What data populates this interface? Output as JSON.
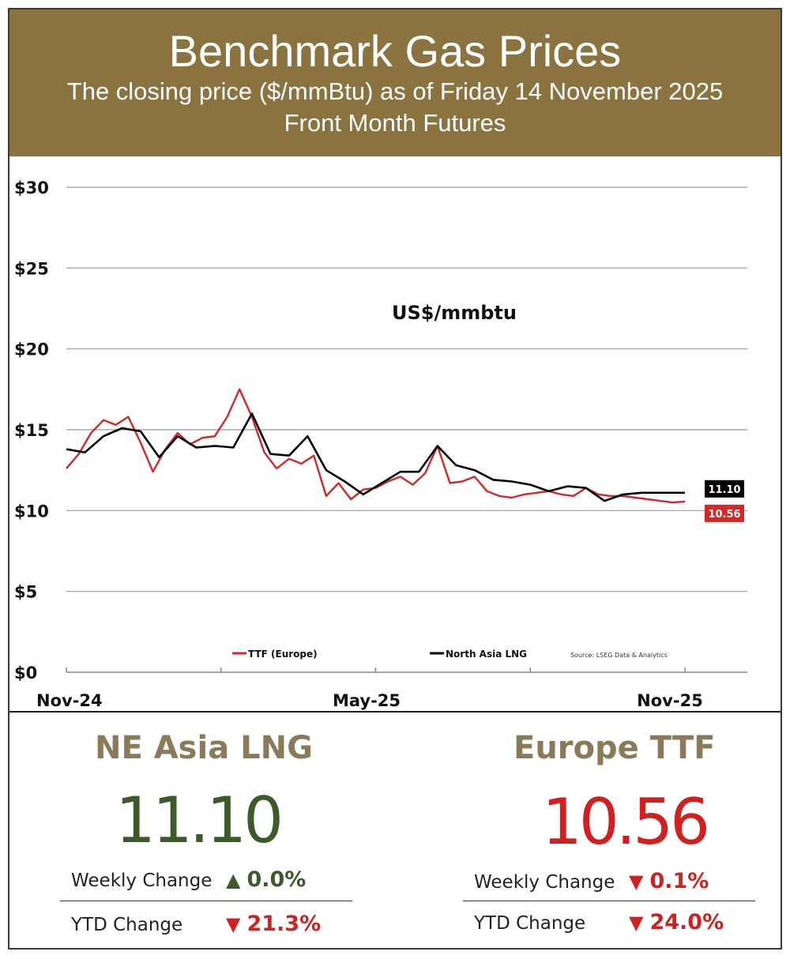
{
  "header": {
    "title": "Benchmark Gas Prices",
    "subtitle": "The closing price ($/mmBtu) as of Friday 14 November 2025",
    "subtitle2": "Front Month  Futures"
  },
  "colors": {
    "header_bg": "#8b7340",
    "ttf": "#d62728",
    "lng": "#000000",
    "up": "#3c5a2a",
    "down": "#d02020",
    "panel_title": "#8b7a5a"
  },
  "chart_data": {
    "type": "line",
    "annotation": "US$/mmbtu",
    "ylim": [
      0,
      30
    ],
    "y_ticks": [
      "$30",
      "$25",
      "$20",
      "$15",
      "$10",
      "$5",
      "$0"
    ],
    "y_tick_values": [
      30,
      25,
      20,
      15,
      10,
      5,
      0
    ],
    "x_tick_labels": [
      "Nov-24",
      "May-25",
      "Nov-25"
    ],
    "x_tick_label_positions": [
      0,
      0.5,
      1.0
    ],
    "source": "Source: LSEG Data & Analytics",
    "grid": true,
    "legend_placement": "bottom",
    "series": [
      {
        "name": "TTF (Europe)",
        "color": "#d62728",
        "end_label": "10.56",
        "x": [
          0,
          0.02,
          0.04,
          0.06,
          0.08,
          0.1,
          0.12,
          0.14,
          0.16,
          0.18,
          0.2,
          0.22,
          0.24,
          0.26,
          0.28,
          0.3,
          0.32,
          0.34,
          0.36,
          0.38,
          0.4,
          0.42,
          0.44,
          0.46,
          0.48,
          0.5,
          0.52,
          0.54,
          0.56,
          0.58,
          0.6,
          0.62,
          0.64,
          0.66,
          0.68,
          0.7,
          0.72,
          0.74,
          0.76,
          0.78,
          0.8,
          0.82,
          0.84,
          0.86,
          0.88,
          0.9,
          0.92,
          0.94,
          0.96,
          0.98,
          1.0
        ],
        "values": [
          12.6,
          13.5,
          14.8,
          15.6,
          15.3,
          15.8,
          14.2,
          12.4,
          13.8,
          14.8,
          14.1,
          14.5,
          14.6,
          15.8,
          17.5,
          15.8,
          13.6,
          12.6,
          13.2,
          12.9,
          13.4,
          10.9,
          11.7,
          10.7,
          11.3,
          11.4,
          11.8,
          12.1,
          11.6,
          12.3,
          14.0,
          11.7,
          11.8,
          12.1,
          11.2,
          10.9,
          10.8,
          11.0,
          11.1,
          11.2,
          11.0,
          10.9,
          11.4,
          11.0,
          10.9,
          10.9,
          10.8,
          10.7,
          10.6,
          10.5,
          10.56
        ]
      },
      {
        "name": "North Asia LNG",
        "color": "#000000",
        "end_label": "11.10",
        "x": [
          0,
          0.03,
          0.06,
          0.09,
          0.12,
          0.15,
          0.18,
          0.21,
          0.24,
          0.27,
          0.3,
          0.33,
          0.36,
          0.39,
          0.42,
          0.45,
          0.48,
          0.51,
          0.54,
          0.57,
          0.6,
          0.63,
          0.66,
          0.69,
          0.72,
          0.75,
          0.78,
          0.81,
          0.84,
          0.87,
          0.9,
          0.93,
          0.96,
          1.0
        ],
        "values": [
          13.8,
          13.6,
          14.6,
          15.1,
          14.9,
          13.3,
          14.6,
          13.9,
          14.0,
          13.9,
          16.0,
          13.5,
          13.4,
          14.6,
          12.5,
          11.8,
          11.0,
          11.7,
          12.4,
          12.4,
          14.0,
          12.8,
          12.5,
          11.9,
          11.8,
          11.6,
          11.2,
          11.5,
          11.4,
          10.6,
          11.0,
          11.1,
          11.1,
          11.1
        ]
      }
    ]
  },
  "panels": {
    "left": {
      "title": "NE Asia LNG",
      "value": "11.10",
      "value_color": "#3c5a2a",
      "weekly_label": "Weekly Change",
      "weekly_arrow": "▲",
      "weekly_value": "0.0%",
      "weekly_color": "#3c5a2a",
      "ytd_label": "YTD Change",
      "ytd_arrow": "▼",
      "ytd_value": "21.3%",
      "ytd_color": "#d02020"
    },
    "right": {
      "title": "Europe TTF",
      "value": "10.56",
      "value_color": "#d02020",
      "weekly_label": "Weekly Change",
      "weekly_arrow": "▼",
      "weekly_value": "0.1%",
      "weekly_color": "#d02020",
      "ytd_label": "YTD Change",
      "ytd_arrow": "▼",
      "ytd_value": "24.0%",
      "ytd_color": "#d02020"
    }
  }
}
